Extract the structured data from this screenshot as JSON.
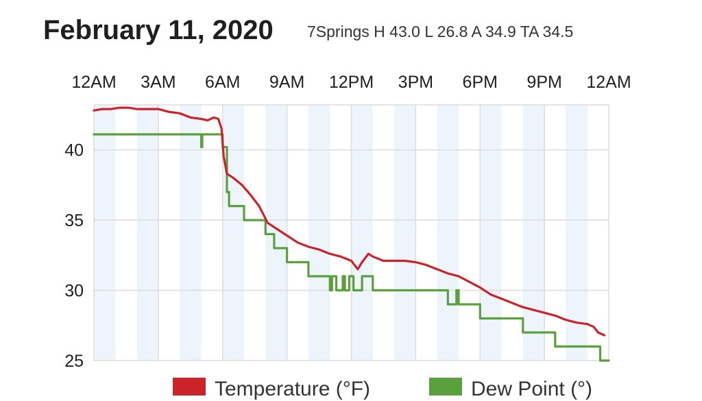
{
  "title": "February 11, 2020",
  "subtitle": "7Springs H 43.0 L 26.8 A 34.9 TA 34.5",
  "colors": {
    "temperature": "#cc2229",
    "dew_point": "#5aa03f",
    "band": "#edf4fb",
    "grid": "#dcdcdc"
  },
  "chart_data": {
    "type": "line",
    "x_unit": "hours since 12AM",
    "x_ticks": [
      "12AM",
      "3AM",
      "6AM",
      "9AM",
      "12PM",
      "3PM",
      "6PM",
      "9PM",
      "12AM"
    ],
    "y_ticks": [
      "40",
      "35",
      "30",
      "25"
    ],
    "ylim": [
      25,
      43.2
    ],
    "xlim": [
      0,
      24
    ],
    "series": [
      {
        "name": "Temperature (°F)",
        "color": "#cc2229",
        "x": [
          0,
          0.4,
          0.8,
          1.2,
          1.6,
          2.0,
          2.4,
          3.0,
          3.5,
          4.0,
          4.5,
          5.0,
          5.3,
          5.6,
          5.8,
          5.95,
          6.05,
          6.2,
          6.5,
          6.9,
          7.3,
          7.7,
          8.1,
          8.5,
          9.0,
          9.5,
          10.0,
          10.5,
          11.0,
          11.5,
          12.0,
          12.3,
          12.5,
          12.8,
          13.0,
          13.5,
          14.0,
          14.5,
          15.0,
          15.5,
          16.0,
          16.5,
          17.0,
          17.5,
          18.0,
          18.5,
          19.0,
          19.5,
          20.0,
          20.5,
          21.0,
          21.5,
          22.0,
          22.5,
          23.0,
          23.3,
          23.5,
          23.8
        ],
        "y": [
          42.8,
          42.9,
          42.9,
          43.0,
          43.0,
          42.9,
          42.9,
          42.9,
          42.7,
          42.6,
          42.3,
          42.2,
          42.1,
          42.3,
          42.2,
          41.5,
          39.5,
          38.3,
          38.0,
          37.5,
          36.8,
          36.0,
          34.8,
          34.4,
          33.9,
          33.4,
          33.1,
          32.9,
          32.6,
          32.4,
          32.1,
          31.5,
          32.0,
          32.6,
          32.4,
          32.1,
          32.1,
          32.1,
          32.0,
          31.8,
          31.5,
          31.2,
          31.0,
          30.6,
          30.2,
          29.7,
          29.4,
          29.1,
          28.8,
          28.6,
          28.4,
          28.2,
          27.9,
          27.7,
          27.6,
          27.4,
          27.0,
          26.8
        ]
      },
      {
        "name": "Dew Point (°)",
        "color": "#5aa03f",
        "x": [
          0,
          5.0,
          5.0,
          5.05,
          5.05,
          5.1,
          5.1,
          5.5,
          5.5,
          5.5,
          5.5,
          6.0,
          6.0,
          6.1,
          6.1,
          6.2,
          6.2,
          6.3,
          6.3,
          7.0,
          7.0,
          8.0,
          8.0,
          8.4,
          8.4,
          9.0,
          9.0,
          10.0,
          10.0,
          11.0,
          11.0,
          11.1,
          11.1,
          11.3,
          11.3,
          11.6,
          11.6,
          11.7,
          11.7,
          11.9,
          11.9,
          12.1,
          12.1,
          12.5,
          12.5,
          13.0,
          13.0,
          16.5,
          16.5,
          16.9,
          16.9,
          17.0,
          17.0,
          18.0,
          18.0,
          19.5,
          19.5,
          20.0,
          20.0,
          21.5,
          21.5,
          23.0,
          23.0,
          23.6,
          23.6,
          24.0
        ],
        "y": [
          41.1,
          41.1,
          40.2,
          40.2,
          41.1,
          41.1,
          41.1,
          41.1,
          41.1,
          41.1,
          41.1,
          41.1,
          40.2,
          40.2,
          40.2,
          40.2,
          37.0,
          37.0,
          36.0,
          36.0,
          35.0,
          35.0,
          34.0,
          34.0,
          33.0,
          33.0,
          32.0,
          32.0,
          31.0,
          31.0,
          30.0,
          30.0,
          31.0,
          31.0,
          30.0,
          30.0,
          31.0,
          31.0,
          30.0,
          30.0,
          31.0,
          31.0,
          30.0,
          30.0,
          31.0,
          31.0,
          30.0,
          30.0,
          29.0,
          29.0,
          30.0,
          30.0,
          29.0,
          29.0,
          28.0,
          28.0,
          28.0,
          28.0,
          27.0,
          27.0,
          26.0,
          26.0,
          26.0,
          26.0,
          25.0,
          25.0
        ]
      }
    ],
    "legend": "bottom",
    "grid": true
  }
}
